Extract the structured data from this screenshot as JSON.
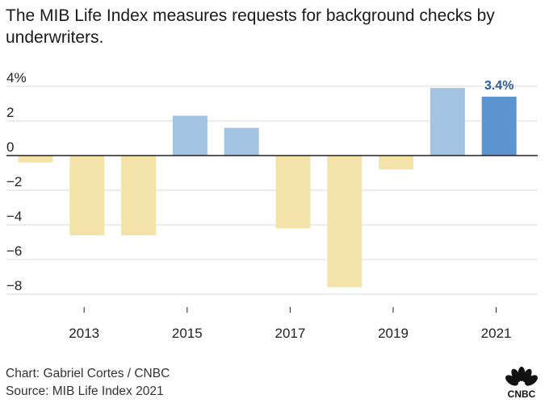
{
  "title": "The MIB Life Index measures requests for background checks by underwriters.",
  "credit": "Chart: Gabriel Cortes / CNBC",
  "source": "Source: MIB Life Index 2021",
  "logo_text": "CNBC",
  "chart_data": {
    "type": "bar",
    "categories": [
      "2012",
      "2013",
      "2014",
      "2015",
      "2016",
      "2017",
      "2018",
      "2019",
      "2020",
      "2021"
    ],
    "values": [
      -0.4,
      -4.6,
      -4.6,
      2.3,
      1.6,
      -4.2,
      -7.6,
      -0.8,
      3.9,
      3.4
    ],
    "ylim": [
      -8,
      4
    ],
    "yticks": [
      4,
      2,
      0,
      -2,
      -4,
      -6,
      -8
    ],
    "ytick_labels": [
      "4%",
      "2",
      "0",
      "−2",
      "−4",
      "−6",
      "−8"
    ],
    "xticks": [
      "2013",
      "2015",
      "2017",
      "2019",
      "2021"
    ],
    "data_labels": [
      {
        "category": "2021",
        "text": "3.4%"
      }
    ],
    "grid": true,
    "colors": {
      "negative": "#f3e3a8",
      "positive": "#a3c3e3",
      "highlight": "#5b94cf",
      "label": "#2e5aa0",
      "grid": "#d9d9d9",
      "axis": "#222222"
    }
  }
}
